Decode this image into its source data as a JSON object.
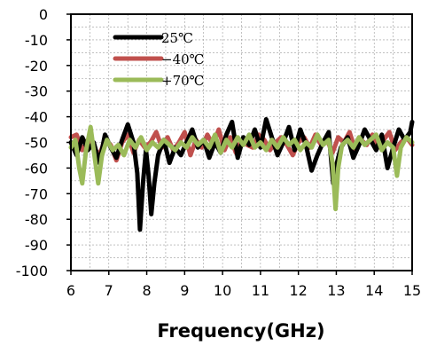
{
  "chart_data": {
    "type": "line",
    "title": "",
    "xlabel": "Frequency(GHz)",
    "ylabel": "",
    "xlim": [
      6,
      15
    ],
    "ylim": [
      -100,
      0
    ],
    "x_ticks": [
      "6",
      "7",
      "8",
      "9",
      "10",
      "11",
      "12",
      "13",
      "14",
      "15"
    ],
    "y_ticks": [
      "0",
      "-10",
      "-20",
      "-30",
      "-40",
      "-50",
      "-60",
      "-70",
      "-80",
      "-90",
      "-100"
    ],
    "grid": true,
    "legend_position": "top-left",
    "series": [
      {
        "name": "25℃",
        "color": "#000000",
        "points": [
          [
            6.0,
            -50
          ],
          [
            6.15,
            -55
          ],
          [
            6.3,
            -48
          ],
          [
            6.45,
            -53
          ],
          [
            6.6,
            -50
          ],
          [
            6.75,
            -58
          ],
          [
            6.9,
            -47
          ],
          [
            7.05,
            -52
          ],
          [
            7.2,
            -56
          ],
          [
            7.35,
            -49
          ],
          [
            7.5,
            -43
          ],
          [
            7.65,
            -50
          ],
          [
            7.75,
            -62
          ],
          [
            7.82,
            -84
          ],
          [
            7.9,
            -66
          ],
          [
            7.98,
            -53
          ],
          [
            8.05,
            -63
          ],
          [
            8.12,
            -78
          ],
          [
            8.2,
            -66
          ],
          [
            8.3,
            -55
          ],
          [
            8.45,
            -49
          ],
          [
            8.6,
            -58
          ],
          [
            8.75,
            -52
          ],
          [
            8.9,
            -55
          ],
          [
            9.05,
            -50
          ],
          [
            9.2,
            -45
          ],
          [
            9.35,
            -52
          ],
          [
            9.5,
            -49
          ],
          [
            9.65,
            -56
          ],
          [
            9.8,
            -50
          ],
          [
            9.95,
            -54
          ],
          [
            10.1,
            -47
          ],
          [
            10.25,
            -42
          ],
          [
            10.4,
            -56
          ],
          [
            10.55,
            -48
          ],
          [
            10.7,
            -51
          ],
          [
            10.85,
            -45
          ],
          [
            11.0,
            -52
          ],
          [
            11.15,
            -41
          ],
          [
            11.3,
            -48
          ],
          [
            11.45,
            -55
          ],
          [
            11.6,
            -50
          ],
          [
            11.75,
            -44
          ],
          [
            11.9,
            -53
          ],
          [
            12.05,
            -45
          ],
          [
            12.2,
            -51
          ],
          [
            12.35,
            -61
          ],
          [
            12.5,
            -55
          ],
          [
            12.65,
            -50
          ],
          [
            12.8,
            -46
          ],
          [
            12.92,
            -66
          ],
          [
            13.0,
            -59
          ],
          [
            13.12,
            -52
          ],
          [
            13.3,
            -48
          ],
          [
            13.45,
            -56
          ],
          [
            13.6,
            -51
          ],
          [
            13.75,
            -45
          ],
          [
            13.9,
            -49
          ],
          [
            14.05,
            -53
          ],
          [
            14.2,
            -47
          ],
          [
            14.35,
            -60
          ],
          [
            14.5,
            -52
          ],
          [
            14.65,
            -45
          ],
          [
            14.8,
            -49
          ],
          [
            14.95,
            -46
          ],
          [
            15.0,
            -42
          ]
        ]
      },
      {
        "name": "−40℃",
        "color": "#c0504d",
        "points": [
          [
            6.0,
            -48
          ],
          [
            6.15,
            -47
          ],
          [
            6.3,
            -53
          ],
          [
            6.45,
            -49
          ],
          [
            6.6,
            -52
          ],
          [
            6.75,
            -55
          ],
          [
            6.9,
            -49
          ],
          [
            7.05,
            -51
          ],
          [
            7.2,
            -57
          ],
          [
            7.35,
            -50
          ],
          [
            7.5,
            -47
          ],
          [
            7.65,
            -54
          ],
          [
            7.8,
            -49
          ],
          [
            7.95,
            -52
          ],
          [
            8.1,
            -50
          ],
          [
            8.25,
            -46
          ],
          [
            8.4,
            -52
          ],
          [
            8.55,
            -48
          ],
          [
            8.7,
            -53
          ],
          [
            8.85,
            -50
          ],
          [
            9.0,
            -46
          ],
          [
            9.15,
            -55
          ],
          [
            9.3,
            -49
          ],
          [
            9.45,
            -52
          ],
          [
            9.6,
            -47
          ],
          [
            9.75,
            -51
          ],
          [
            9.9,
            -45
          ],
          [
            10.05,
            -53
          ],
          [
            10.2,
            -48
          ],
          [
            10.35,
            -54
          ],
          [
            10.5,
            -49
          ],
          [
            10.65,
            -51
          ],
          [
            10.8,
            -52
          ],
          [
            10.95,
            -47
          ],
          [
            11.1,
            -49
          ],
          [
            11.25,
            -53
          ],
          [
            11.4,
            -50
          ],
          [
            11.55,
            -48
          ],
          [
            11.7,
            -51
          ],
          [
            11.85,
            -55
          ],
          [
            12.0,
            -50
          ],
          [
            12.15,
            -48
          ],
          [
            12.3,
            -52
          ],
          [
            12.45,
            -47
          ],
          [
            12.6,
            -51
          ],
          [
            12.75,
            -49
          ],
          [
            12.9,
            -54
          ],
          [
            13.05,
            -48
          ],
          [
            13.2,
            -50
          ],
          [
            13.35,
            -46
          ],
          [
            13.5,
            -53
          ],
          [
            13.65,
            -49
          ],
          [
            13.8,
            -51
          ],
          [
            13.95,
            -47
          ],
          [
            14.1,
            -52
          ],
          [
            14.25,
            -49
          ],
          [
            14.4,
            -46
          ],
          [
            14.55,
            -53
          ],
          [
            14.7,
            -50
          ],
          [
            14.85,
            -48
          ],
          [
            15.0,
            -51
          ]
        ]
      },
      {
        "name": "+70℃",
        "color": "#9bbb59",
        "points": [
          [
            6.0,
            -52
          ],
          [
            6.12,
            -49
          ],
          [
            6.22,
            -60
          ],
          [
            6.3,
            -66
          ],
          [
            6.4,
            -53
          ],
          [
            6.52,
            -44
          ],
          [
            6.62,
            -55
          ],
          [
            6.72,
            -66
          ],
          [
            6.82,
            -55
          ],
          [
            6.95,
            -49
          ],
          [
            7.1,
            -53
          ],
          [
            7.25,
            -51
          ],
          [
            7.4,
            -55
          ],
          [
            7.55,
            -49
          ],
          [
            7.7,
            -52
          ],
          [
            7.85,
            -48
          ],
          [
            8.0,
            -53
          ],
          [
            8.15,
            -50
          ],
          [
            8.3,
            -52
          ],
          [
            8.45,
            -49
          ],
          [
            8.6,
            -51
          ],
          [
            8.75,
            -53
          ],
          [
            8.9,
            -50
          ],
          [
            9.05,
            -52
          ],
          [
            9.2,
            -48
          ],
          [
            9.35,
            -51
          ],
          [
            9.5,
            -49
          ],
          [
            9.65,
            -52
          ],
          [
            9.8,
            -47
          ],
          [
            9.95,
            -54
          ],
          [
            10.1,
            -49
          ],
          [
            10.25,
            -52
          ],
          [
            10.4,
            -48
          ],
          [
            10.55,
            -51
          ],
          [
            10.7,
            -47
          ],
          [
            10.85,
            -52
          ],
          [
            11.0,
            -50
          ],
          [
            11.15,
            -53
          ],
          [
            11.3,
            -49
          ],
          [
            11.45,
            -52
          ],
          [
            11.6,
            -48
          ],
          [
            11.75,
            -51
          ],
          [
            11.9,
            -49
          ],
          [
            12.05,
            -53
          ],
          [
            12.2,
            -50
          ],
          [
            12.35,
            -52
          ],
          [
            12.5,
            -47
          ],
          [
            12.65,
            -51
          ],
          [
            12.8,
            -49
          ],
          [
            12.9,
            -58
          ],
          [
            12.98,
            -76
          ],
          [
            13.05,
            -60
          ],
          [
            13.15,
            -51
          ],
          [
            13.3,
            -49
          ],
          [
            13.45,
            -52
          ],
          [
            13.6,
            -48
          ],
          [
            13.75,
            -51
          ],
          [
            13.9,
            -49
          ],
          [
            14.05,
            -47
          ],
          [
            14.2,
            -53
          ],
          [
            14.35,
            -50
          ],
          [
            14.5,
            -52
          ],
          [
            14.6,
            -63
          ],
          [
            14.7,
            -52
          ],
          [
            14.85,
            -48
          ],
          [
            15.0,
            -50
          ]
        ]
      }
    ]
  }
}
